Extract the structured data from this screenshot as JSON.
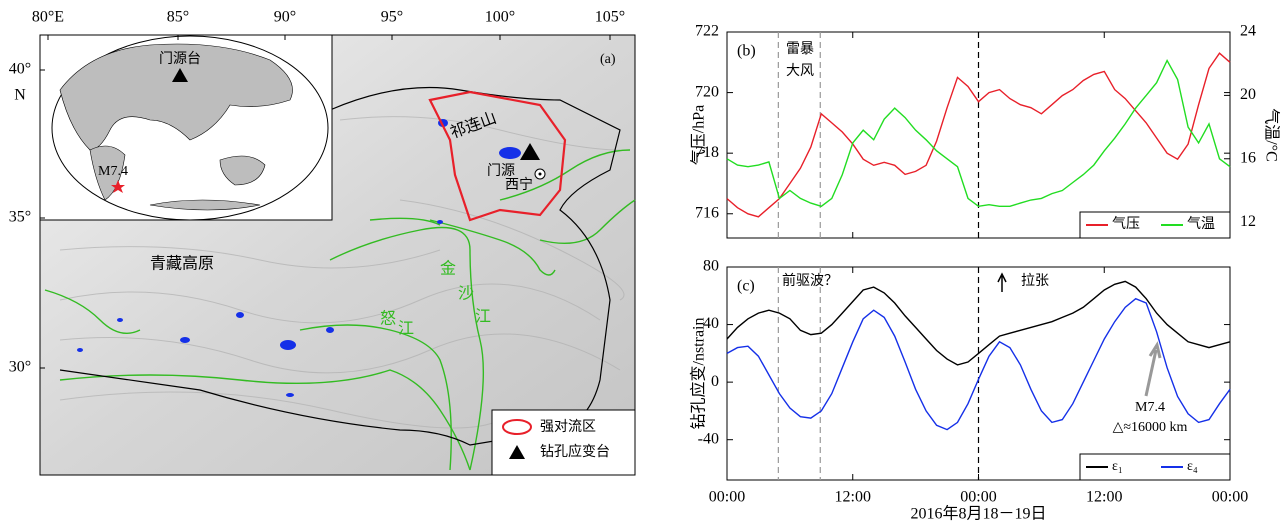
{
  "map": {
    "panel_label": "(a)",
    "lon_ticks": [
      "80°E",
      "85°",
      "90°",
      "95°",
      "100°",
      "105°"
    ],
    "lat_ticks": [
      "40°",
      "35°",
      "30°"
    ],
    "lat_unit": "N",
    "inset": {
      "station": "门源台",
      "quake": "M7.4"
    },
    "labels": {
      "qilian": "祁连山",
      "menyuan": "门源",
      "xining": "西宁",
      "plateau": "青藏高原"
    },
    "jinsha": [
      "金",
      "沙",
      "江"
    ],
    "nu": [
      "怒",
      "江"
    ],
    "legend": [
      "强对流区",
      "钻孔应变台"
    ]
  },
  "chart_data": [
    {
      "type": "line",
      "panel_label": "(b)",
      "ylabel": "气压/hPa",
      "y2label": "气温/°C",
      "annotations": [
        "雷暴",
        "大风"
      ],
      "x": [
        0,
        1,
        2,
        3,
        4,
        5,
        6,
        7,
        8,
        9,
        10,
        11,
        12,
        13,
        14,
        15,
        16,
        17,
        18,
        19,
        20,
        21,
        22,
        23,
        24,
        25,
        26,
        27,
        28,
        29,
        30,
        31,
        32,
        33,
        34,
        35,
        36,
        37,
        38,
        39,
        40,
        41,
        42,
        43,
        44,
        45,
        46,
        47,
        48
      ],
      "xlim": [
        0,
        48
      ],
      "xticks": [
        0,
        12,
        24,
        36,
        48
      ],
      "ylim": [
        715.2,
        722
      ],
      "yticks": [
        716,
        718,
        720,
        722
      ],
      "y2lim": [
        11,
        24
      ],
      "y2ticks": [
        12,
        16,
        20,
        24
      ],
      "vlines": [
        4.9,
        8.9,
        24
      ],
      "vline_colors": [
        "#999999",
        "#999999",
        "#000000"
      ],
      "legend": "lower right",
      "series": [
        {
          "name": "气压",
          "color": "#e8202a",
          "values": [
            716.5,
            716.2,
            716.0,
            715.9,
            716.2,
            716.5,
            717.0,
            717.5,
            718.2,
            719.3,
            719.0,
            718.7,
            718.3,
            717.8,
            717.6,
            717.7,
            717.6,
            717.3,
            717.4,
            717.6,
            718.4,
            719.5,
            720.5,
            720.2,
            719.7,
            720.0,
            720.1,
            719.8,
            719.6,
            719.5,
            719.3,
            719.6,
            719.9,
            720.1,
            720.4,
            720.6,
            720.7,
            720.1,
            719.8,
            719.4,
            719.0,
            718.5,
            718.0,
            717.8,
            718.3,
            719.6,
            720.8,
            721.3,
            721.0
          ]
        },
        {
          "name": "气温",
          "color": "#22dd22",
          "axis": "y2",
          "values": [
            16.0,
            15.6,
            15.5,
            15.6,
            15.8,
            13.5,
            14.0,
            13.5,
            13.2,
            13.0,
            13.5,
            15.0,
            17.0,
            17.8,
            17.2,
            18.5,
            19.2,
            18.6,
            17.8,
            17.2,
            16.5,
            16.0,
            15.5,
            13.5,
            13.0,
            13.1,
            13.0,
            13.0,
            13.2,
            13.4,
            13.5,
            13.8,
            14.0,
            14.5,
            15.0,
            15.6,
            16.5,
            17.3,
            18.2,
            19.2,
            20.0,
            20.8,
            22.2,
            21.0,
            18.0,
            17.0,
            18.2,
            16.0,
            15.5
          ]
        }
      ]
    },
    {
      "type": "line",
      "panel_label": "(c)",
      "ylabel": "钻孔应变/nstrain",
      "xlabel": "2016年8月18－19日",
      "annotations": [
        "前驱波？",
        "拉张",
        "M7.4",
        "△≈16000 km"
      ],
      "x": [
        0,
        1,
        2,
        3,
        4,
        5,
        6,
        7,
        8,
        9,
        10,
        11,
        12,
        13,
        14,
        15,
        16,
        17,
        18,
        19,
        20,
        21,
        22,
        23,
        24,
        25,
        26,
        27,
        28,
        29,
        30,
        31,
        32,
        33,
        34,
        35,
        36,
        37,
        38,
        39,
        40,
        41,
        42,
        43,
        44,
        45,
        46,
        47,
        48
      ],
      "xlim": [
        0,
        48
      ],
      "xticks": [
        {
          "value": 0,
          "label": "00:00"
        },
        {
          "value": 12,
          "label": "12:00"
        },
        {
          "value": 24,
          "label": "00:00"
        },
        {
          "value": 36,
          "label": "12:00"
        },
        {
          "value": 48,
          "label": "00:00"
        }
      ],
      "ylim": [
        -68,
        80
      ],
      "yticks": [
        -40,
        0,
        40,
        80
      ],
      "vlines": [
        4.9,
        8.9,
        24
      ],
      "vline_colors": [
        "#999999",
        "#999999",
        "#000000"
      ],
      "legend": "lower right",
      "series": [
        {
          "name": "ε₁",
          "color": "#000000",
          "values": [
            30,
            38,
            44,
            48,
            50,
            48,
            44,
            36,
            33,
            34,
            40,
            48,
            56,
            64,
            66,
            62,
            55,
            46,
            38,
            30,
            22,
            16,
            12,
            14,
            20,
            26,
            32,
            34,
            36,
            38,
            40,
            42,
            45,
            48,
            52,
            58,
            64,
            68,
            70,
            66,
            58,
            48,
            40,
            34,
            28,
            26,
            24,
            26,
            28
          ]
        },
        {
          "name": "ε₄",
          "color": "#1530e8",
          "values": [
            20,
            24,
            25,
            18,
            5,
            -8,
            -18,
            -24,
            -25,
            -20,
            -8,
            10,
            28,
            44,
            50,
            45,
            32,
            14,
            -5,
            -20,
            -30,
            -33,
            -28,
            -15,
            2,
            18,
            28,
            24,
            12,
            -5,
            -20,
            -28,
            -26,
            -15,
            0,
            15,
            30,
            42,
            52,
            58,
            55,
            35,
            10,
            -10,
            -22,
            -28,
            -26,
            -15,
            -5
          ]
        }
      ]
    }
  ]
}
